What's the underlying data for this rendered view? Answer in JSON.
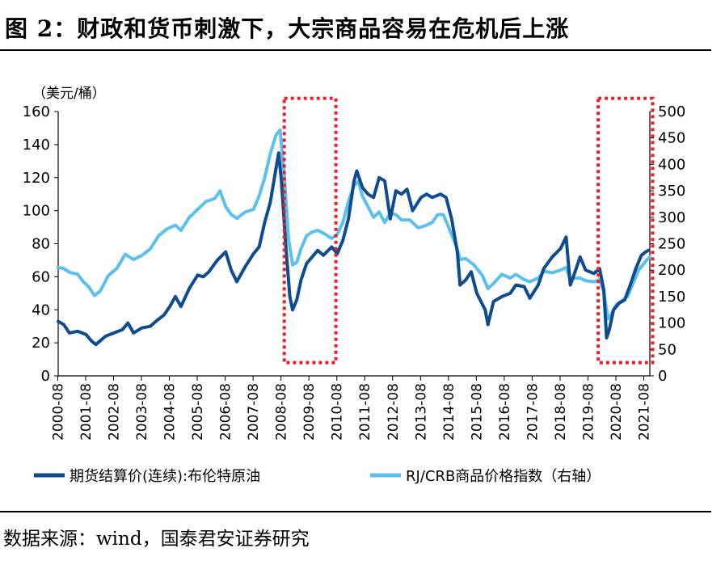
{
  "header": {
    "title": "图 2：财政和货币刺激下，大宗商品容易在危机后上涨"
  },
  "footer": {
    "source": "数据来源：wind，国泰君安证券研究"
  },
  "chart_data": {
    "type": "line",
    "ylabel_left": "（美元/桶）",
    "x_ticks": [
      "2000-08",
      "2001-08",
      "2002-08",
      "2003-08",
      "2004-08",
      "2005-08",
      "2006-08",
      "2007-08",
      "2008-08",
      "2009-08",
      "2010-08",
      "2011-08",
      "2012-08",
      "2013-08",
      "2014-08",
      "2015-08",
      "2016-08",
      "2017-08",
      "2018-08",
      "2019-08",
      "2020-08",
      "2021-08"
    ],
    "ylim_left": [
      0,
      160
    ],
    "yticks_left": [
      0,
      20,
      40,
      60,
      80,
      100,
      120,
      140,
      160
    ],
    "ylim_right": [
      0,
      500
    ],
    "yticks_right": [
      0,
      50,
      100,
      150,
      200,
      250,
      300,
      350,
      400,
      450,
      500
    ],
    "legend_position": "bottom",
    "series": [
      {
        "name": "期货结算价(连续):布伦特原油",
        "axis": "left",
        "color": "#0e4b8f",
        "points": [
          [
            2000.6,
            33
          ],
          [
            2000.8,
            31
          ],
          [
            2001.0,
            26
          ],
          [
            2001.3,
            27
          ],
          [
            2001.6,
            25
          ],
          [
            2001.8,
            21
          ],
          [
            2001.95,
            19
          ],
          [
            2002.3,
            24
          ],
          [
            2002.6,
            26
          ],
          [
            2002.9,
            28
          ],
          [
            2003.1,
            32
          ],
          [
            2003.3,
            26
          ],
          [
            2003.6,
            29
          ],
          [
            2003.9,
            30
          ],
          [
            2004.1,
            33
          ],
          [
            2004.4,
            37
          ],
          [
            2004.6,
            42
          ],
          [
            2004.8,
            48
          ],
          [
            2005.0,
            42
          ],
          [
            2005.3,
            53
          ],
          [
            2005.6,
            61
          ],
          [
            2005.8,
            60
          ],
          [
            2006.0,
            63
          ],
          [
            2006.3,
            70
          ],
          [
            2006.6,
            75
          ],
          [
            2006.8,
            64
          ],
          [
            2007.0,
            57
          ],
          [
            2007.3,
            66
          ],
          [
            2007.6,
            74
          ],
          [
            2007.8,
            78
          ],
          [
            2008.0,
            93
          ],
          [
            2008.2,
            105
          ],
          [
            2008.4,
            125
          ],
          [
            2008.5,
            135
          ],
          [
            2008.6,
            118
          ],
          [
            2008.75,
            80
          ],
          [
            2008.9,
            48
          ],
          [
            2009.0,
            40
          ],
          [
            2009.15,
            46
          ],
          [
            2009.3,
            58
          ],
          [
            2009.5,
            68
          ],
          [
            2009.7,
            72
          ],
          [
            2009.9,
            76
          ],
          [
            2010.1,
            73
          ],
          [
            2010.4,
            78
          ],
          [
            2010.6,
            74
          ],
          [
            2010.8,
            82
          ],
          [
            2011.0,
            95
          ],
          [
            2011.2,
            118
          ],
          [
            2011.3,
            124
          ],
          [
            2011.5,
            114
          ],
          [
            2011.7,
            110
          ],
          [
            2011.9,
            108
          ],
          [
            2012.1,
            120
          ],
          [
            2012.3,
            118
          ],
          [
            2012.5,
            95
          ],
          [
            2012.7,
            112
          ],
          [
            2012.9,
            110
          ],
          [
            2013.1,
            113
          ],
          [
            2013.3,
            100
          ],
          [
            2013.6,
            108
          ],
          [
            2013.8,
            110
          ],
          [
            2014.0,
            108
          ],
          [
            2014.3,
            110
          ],
          [
            2014.5,
            108
          ],
          [
            2014.7,
            95
          ],
          [
            2014.9,
            75
          ],
          [
            2015.0,
            55
          ],
          [
            2015.2,
            58
          ],
          [
            2015.4,
            63
          ],
          [
            2015.6,
            50
          ],
          [
            2015.9,
            40
          ],
          [
            2016.0,
            31
          ],
          [
            2016.2,
            45
          ],
          [
            2016.5,
            48
          ],
          [
            2016.8,
            50
          ],
          [
            2017.0,
            55
          ],
          [
            2017.3,
            54
          ],
          [
            2017.5,
            47
          ],
          [
            2017.8,
            55
          ],
          [
            2018.0,
            65
          ],
          [
            2018.3,
            72
          ],
          [
            2018.6,
            77
          ],
          [
            2018.8,
            84
          ],
          [
            2018.95,
            55
          ],
          [
            2019.1,
            62
          ],
          [
            2019.3,
            72
          ],
          [
            2019.5,
            64
          ],
          [
            2019.8,
            62
          ],
          [
            2020.0,
            65
          ],
          [
            2020.15,
            52
          ],
          [
            2020.25,
            23
          ],
          [
            2020.35,
            28
          ],
          [
            2020.5,
            40
          ],
          [
            2020.7,
            44
          ],
          [
            2020.9,
            46
          ],
          [
            2021.1,
            55
          ],
          [
            2021.3,
            65
          ],
          [
            2021.5,
            73
          ],
          [
            2021.65,
            75
          ],
          [
            2021.75,
            76
          ]
        ]
      },
      {
        "name": "RJ/CRB商品价格指数（右轴）",
        "axis": "right",
        "color": "#5bc0ee",
        "points": [
          [
            2000.6,
            205
          ],
          [
            2000.8,
            203
          ],
          [
            2001.0,
            196
          ],
          [
            2001.3,
            192
          ],
          [
            2001.5,
            178
          ],
          [
            2001.7,
            168
          ],
          [
            2001.9,
            152
          ],
          [
            2002.1,
            160
          ],
          [
            2002.4,
            190
          ],
          [
            2002.7,
            203
          ],
          [
            2003.0,
            230
          ],
          [
            2003.3,
            220
          ],
          [
            2003.6,
            228
          ],
          [
            2003.9,
            240
          ],
          [
            2004.2,
            265
          ],
          [
            2004.5,
            278
          ],
          [
            2004.8,
            285
          ],
          [
            2005.0,
            275
          ],
          [
            2005.3,
            300
          ],
          [
            2005.6,
            315
          ],
          [
            2005.9,
            330
          ],
          [
            2006.2,
            335
          ],
          [
            2006.4,
            350
          ],
          [
            2006.6,
            320
          ],
          [
            2006.8,
            305
          ],
          [
            2007.0,
            298
          ],
          [
            2007.3,
            310
          ],
          [
            2007.6,
            315
          ],
          [
            2007.8,
            340
          ],
          [
            2008.0,
            375
          ],
          [
            2008.2,
            420
          ],
          [
            2008.4,
            455
          ],
          [
            2008.55,
            465
          ],
          [
            2008.7,
            380
          ],
          [
            2008.85,
            260
          ],
          [
            2009.0,
            210
          ],
          [
            2009.15,
            215
          ],
          [
            2009.3,
            240
          ],
          [
            2009.5,
            265
          ],
          [
            2009.7,
            272
          ],
          [
            2009.9,
            275
          ],
          [
            2010.1,
            270
          ],
          [
            2010.4,
            260
          ],
          [
            2010.6,
            268
          ],
          [
            2010.8,
            290
          ],
          [
            2011.0,
            330
          ],
          [
            2011.2,
            360
          ],
          [
            2011.35,
            368
          ],
          [
            2011.5,
            340
          ],
          [
            2011.7,
            320
          ],
          [
            2011.9,
            300
          ],
          [
            2012.1,
            310
          ],
          [
            2012.3,
            290
          ],
          [
            2012.5,
            308
          ],
          [
            2012.7,
            305
          ],
          [
            2012.9,
            295
          ],
          [
            2013.2,
            295
          ],
          [
            2013.5,
            280
          ],
          [
            2013.8,
            285
          ],
          [
            2014.0,
            290
          ],
          [
            2014.2,
            305
          ],
          [
            2014.4,
            305
          ],
          [
            2014.6,
            280
          ],
          [
            2014.9,
            240
          ],
          [
            2015.0,
            220
          ],
          [
            2015.2,
            222
          ],
          [
            2015.5,
            210
          ],
          [
            2015.8,
            190
          ],
          [
            2016.0,
            165
          ],
          [
            2016.2,
            175
          ],
          [
            2016.5,
            192
          ],
          [
            2016.8,
            185
          ],
          [
            2017.0,
            192
          ],
          [
            2017.3,
            182
          ],
          [
            2017.5,
            178
          ],
          [
            2017.8,
            185
          ],
          [
            2018.0,
            198
          ],
          [
            2018.3,
            195
          ],
          [
            2018.6,
            200
          ],
          [
            2018.8,
            205
          ],
          [
            2018.95,
            182
          ],
          [
            2019.1,
            185
          ],
          [
            2019.3,
            185
          ],
          [
            2019.5,
            180
          ],
          [
            2019.8,
            178
          ],
          [
            2020.0,
            182
          ],
          [
            2020.15,
            160
          ],
          [
            2020.3,
            108
          ],
          [
            2020.4,
            115
          ],
          [
            2020.6,
            135
          ],
          [
            2020.8,
            142
          ],
          [
            2021.0,
            150
          ],
          [
            2021.2,
            175
          ],
          [
            2021.4,
            200
          ],
          [
            2021.55,
            210
          ],
          [
            2021.7,
            220
          ],
          [
            2021.8,
            225
          ]
        ]
      }
    ],
    "highlight_boxes": [
      {
        "x_from": 2008.7,
        "x_to": 2010.55,
        "y_from": 8,
        "y_to": 168
      },
      {
        "x_from": 2019.95,
        "x_to": 2021.9,
        "y_from": 8,
        "y_to": 168
      }
    ],
    "highlight_color": "#e8202a"
  }
}
